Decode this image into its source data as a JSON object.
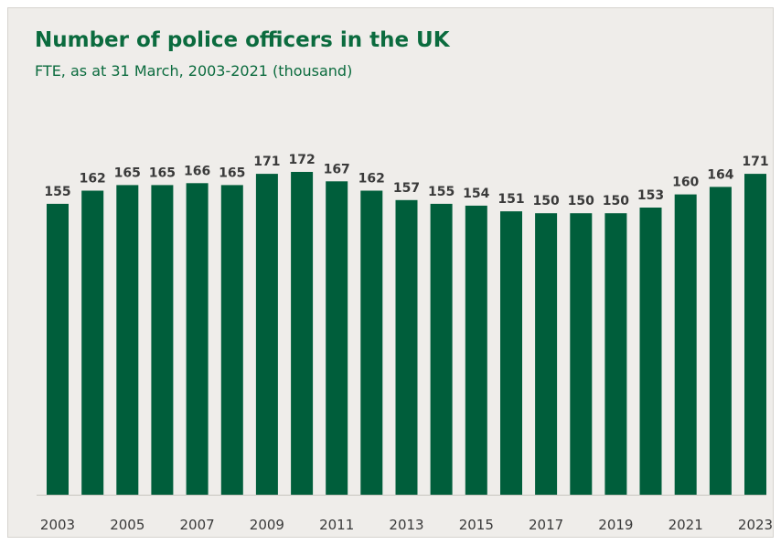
{
  "chart_data": {
    "type": "bar",
    "title": "Number of police officers in the UK",
    "subtitle": "FTE, as at 31 March, 2003-2021 (thousand)",
    "xlabel": "",
    "ylabel": "",
    "categories": [
      "2003",
      "2004",
      "2005",
      "2006",
      "2007",
      "2008",
      "2009",
      "2010",
      "2011",
      "2012",
      "2013",
      "2014",
      "2015",
      "2016",
      "2017",
      "2018",
      "2019",
      "2020",
      "2021",
      "2022",
      "2023"
    ],
    "values": [
      155,
      162,
      165,
      165,
      166,
      165,
      171,
      172,
      167,
      162,
      157,
      155,
      154,
      151,
      150,
      150,
      150,
      153,
      160,
      164,
      171
    ],
    "tick_labels": [
      "2003",
      "2005",
      "2007",
      "2009",
      "2011",
      "2013",
      "2015",
      "2017",
      "2019",
      "2021",
      "2023"
    ],
    "ylim": [
      0,
      172
    ],
    "grid": false,
    "legend": "none",
    "bar_color": "#005e3b",
    "label_color": "#3a3a3a",
    "title_color": "#0b6b3e"
  }
}
